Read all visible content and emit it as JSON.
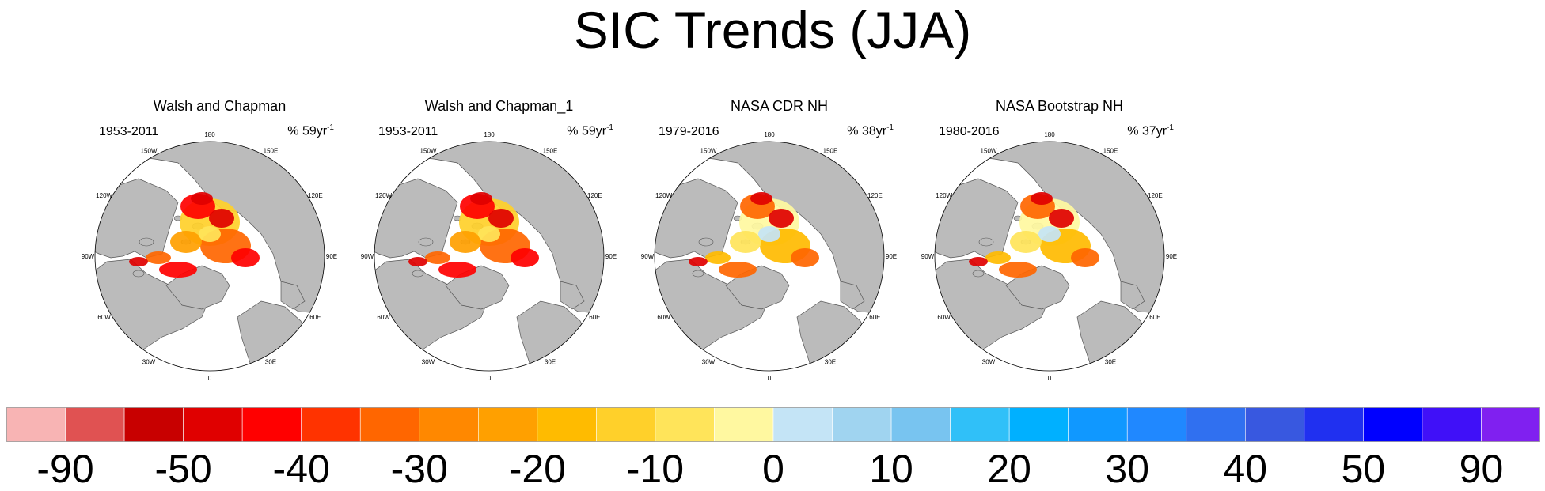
{
  "title": "SIC Trends (JJA)",
  "panels": [
    {
      "title": "Walsh and Chapman",
      "period": "1953-2011",
      "unit_pct": "% 59yr",
      "unit_sup": "-1"
    },
    {
      "title": "Walsh and Chapman_1",
      "period": "1953-2011",
      "unit_pct": "% 59yr",
      "unit_sup": "-1"
    },
    {
      "title": "NASA CDR NH",
      "period": "1979-2016",
      "unit_pct": "% 38yr",
      "unit_sup": "-1"
    },
    {
      "title": "NASA Bootstrap NH",
      "period": "1980-2016",
      "unit_pct": "% 37yr",
      "unit_sup": "-1"
    }
  ],
  "longitude_labels": [
    "180",
    "150E",
    "120E",
    "90E",
    "60E",
    "30E",
    "0",
    "30W",
    "60W",
    "90W",
    "120W",
    "150W"
  ],
  "colorbar": {
    "colors": [
      "#f8b4b4",
      "#e05252",
      "#c80000",
      "#e00000",
      "#ff0000",
      "#ff3300",
      "#ff6600",
      "#ff8800",
      "#ffa000",
      "#ffbb00",
      "#ffd02a",
      "#ffe45a",
      "#fff8a0",
      "#c4e4f6",
      "#a0d4f0",
      "#78c4f0",
      "#30c0f8",
      "#00b0ff",
      "#1098ff",
      "#2088ff",
      "#3070f0",
      "#3858e0",
      "#2030f0",
      "#0000ff",
      "#4010f8",
      "#8020f0"
    ],
    "labels": [
      "-90",
      "-50",
      "-40",
      "-30",
      "-20",
      "-10",
      "0",
      "10",
      "20",
      "30",
      "40",
      "50",
      "90"
    ]
  },
  "colors": {
    "land": "#bbbbbb",
    "ocean": "#ffffff",
    "coast": "#555555"
  }
}
